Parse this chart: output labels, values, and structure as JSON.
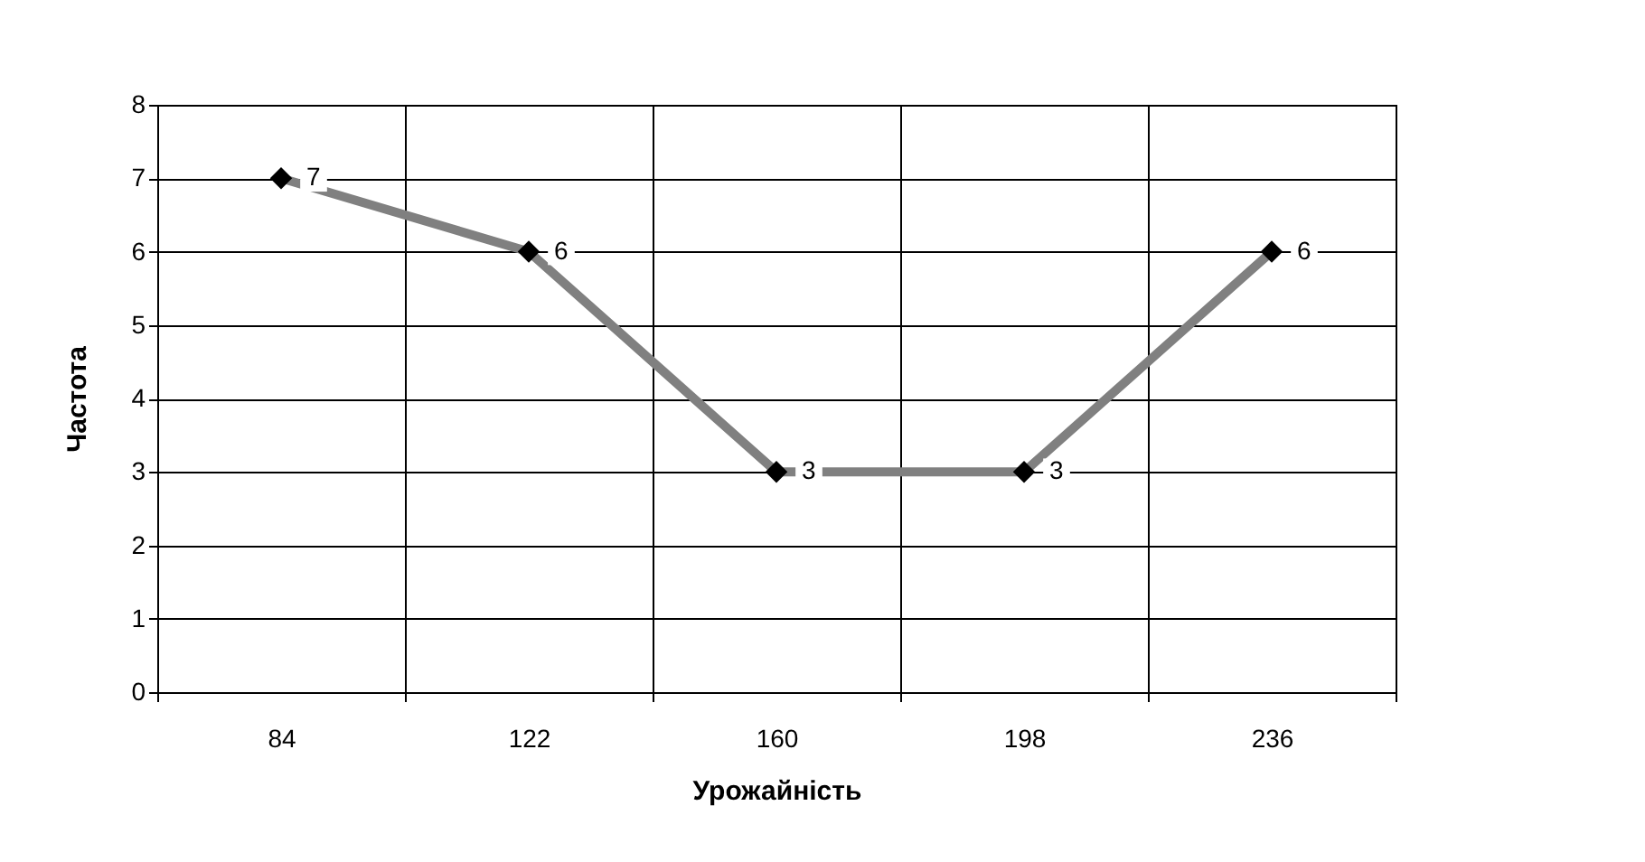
{
  "chart_data": {
    "type": "line",
    "xlabel": "Урожайність",
    "ylabel": "Частота",
    "categories": [
      "84",
      "122",
      "160",
      "198",
      "236"
    ],
    "series": [
      {
        "color": "#808080",
        "values": [
          7,
          6,
          3,
          3,
          6
        ]
      }
    ],
    "ylim": [
      0,
      8
    ],
    "yticks": [
      0,
      1,
      2,
      3,
      4,
      5,
      6,
      7,
      8
    ],
    "grid": true,
    "marker": "diamond",
    "data_labels": true
  }
}
